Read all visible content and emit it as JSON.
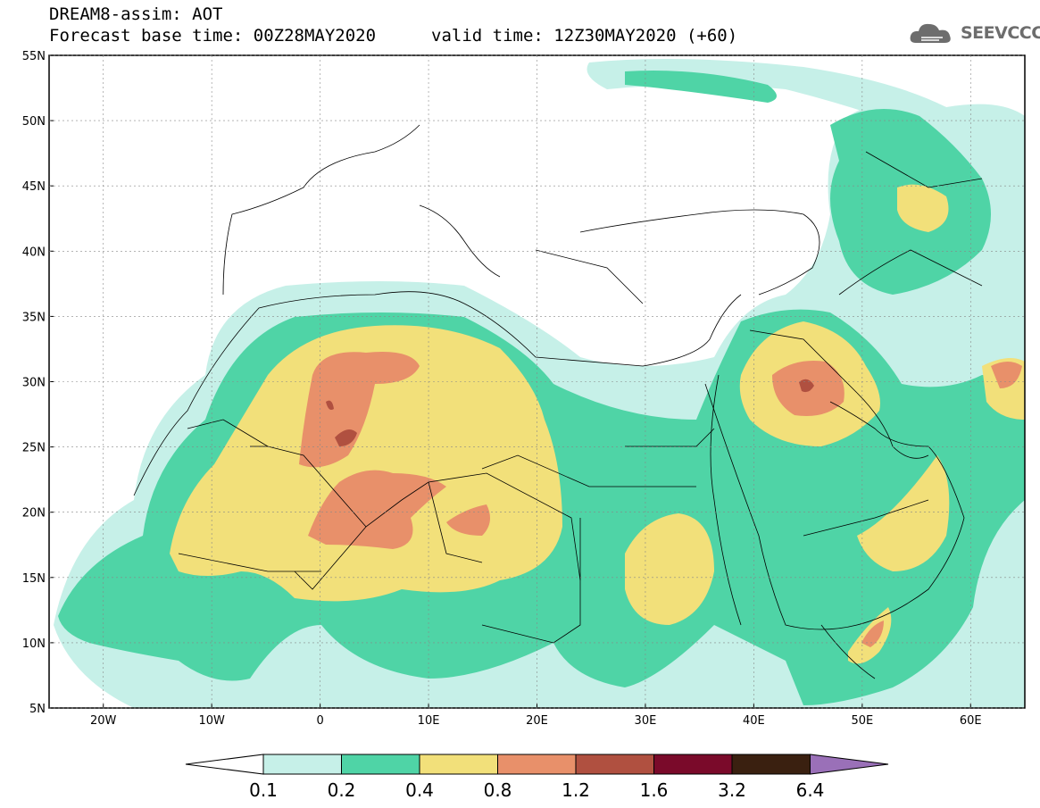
{
  "header": {
    "line1": "DREAM8-assim: AOT",
    "line2_left": "Forecast base time: 00Z28MAY2020",
    "line2_right": "valid time: 12Z30MAY2020 (+60)",
    "logo_text": "SEEVCCC"
  },
  "map": {
    "lat_labels": [
      "55N",
      "50N",
      "45N",
      "40N",
      "35N",
      "30N",
      "25N",
      "20N",
      "15N",
      "10N",
      "5N"
    ],
    "lon_labels": [
      "20W",
      "10W",
      "0",
      "10E",
      "20E",
      "30E",
      "40E",
      "50E",
      "60E"
    ],
    "lat_range": [
      5,
      55
    ],
    "lon_range": [
      -25,
      65
    ]
  },
  "colorbar": {
    "labels": [
      "0.1",
      "0.2",
      "0.4",
      "0.8",
      "1.2",
      "1.6",
      "3.2",
      "6.4"
    ],
    "colors": [
      "#ffffff",
      "#c6f0e8",
      "#4fd4a6",
      "#f2e07a",
      "#e8906a",
      "#b05040",
      "#7a0a2a",
      "#3a2010",
      "#9a70b8"
    ]
  }
}
